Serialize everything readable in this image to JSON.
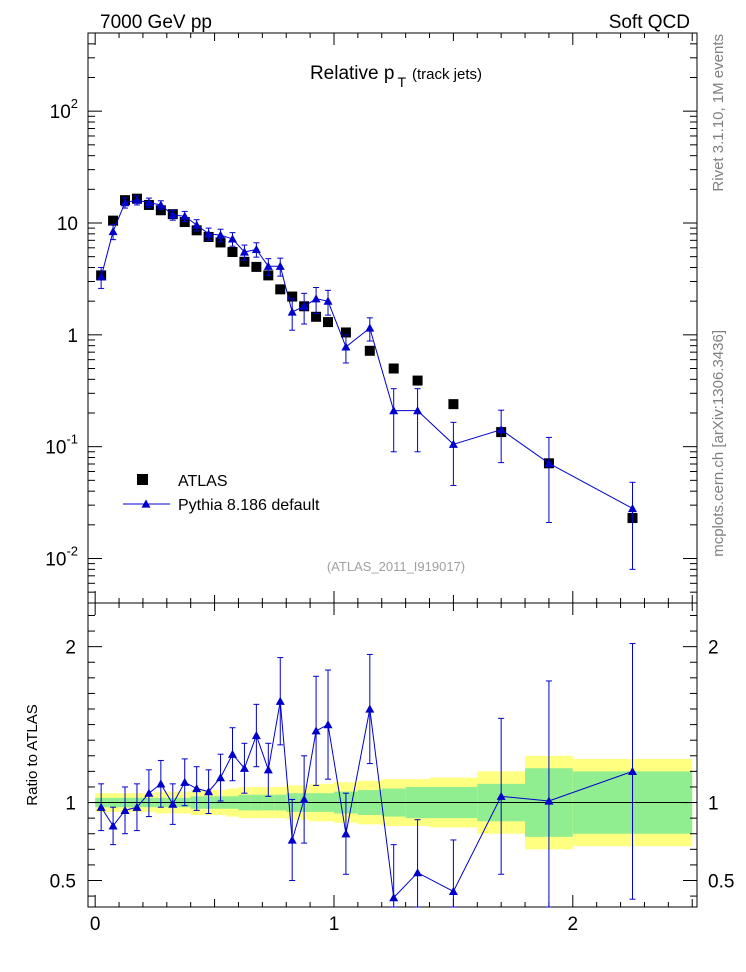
{
  "header": {
    "left": "7000 GeV pp",
    "right": "Soft QCD"
  },
  "side_text": {
    "rivet": "Rivet 3.1.10, 1M events",
    "mcplots": "mcplots.cern.ch [arXiv:1306.3436]"
  },
  "chart_data": [
    {
      "type": "scatter",
      "panel": "main",
      "title": "Relative p_T (track jets)",
      "title_main": "Relative p",
      "title_sub": "T",
      "title_rest": "(track jets)",
      "watermark": "(ATLAS_2011_I919017)",
      "yscale": "log",
      "xlim": [
        -0.03,
        2.52
      ],
      "ylim": [
        0.004,
        500
      ],
      "grid": false,
      "legend_position": "lower-left",
      "x_ticks": [
        "0",
        "1",
        "2"
      ],
      "y_ticks": [
        {
          "v": 0.01,
          "base": "10",
          "exp": "-2"
        },
        {
          "v": 0.1,
          "base": "10",
          "exp": "-1"
        },
        {
          "v": 1,
          "label": "1"
        },
        {
          "v": 10,
          "label": "10"
        },
        {
          "v": 100,
          "base": "10",
          "exp": "2"
        }
      ],
      "series": [
        {
          "name": "ATLAS",
          "color": "#000000",
          "marker": "square",
          "x": [
            0.025,
            0.075,
            0.125,
            0.175,
            0.225,
            0.275,
            0.325,
            0.375,
            0.425,
            0.475,
            0.525,
            0.575,
            0.625,
            0.675,
            0.725,
            0.775,
            0.825,
            0.875,
            0.925,
            0.975,
            1.05,
            1.15,
            1.25,
            1.35,
            1.5,
            1.7,
            1.9,
            2.25
          ],
          "y": [
            3.4,
            10.5,
            16.0,
            16.5,
            14.5,
            13.0,
            12.0,
            10.2,
            8.6,
            7.5,
            6.7,
            5.5,
            4.5,
            4.05,
            3.4,
            2.55,
            2.2,
            1.8,
            1.45,
            1.3,
            1.05,
            0.72,
            0.5,
            0.39,
            0.24,
            0.135,
            0.071,
            0.023
          ]
        },
        {
          "name": "Pythia 8.186 default",
          "color": "#0000cc",
          "marker": "triangle",
          "x": [
            0.025,
            0.075,
            0.125,
            0.175,
            0.225,
            0.275,
            0.325,
            0.375,
            0.425,
            0.475,
            0.525,
            0.575,
            0.625,
            0.675,
            0.725,
            0.775,
            0.825,
            0.875,
            0.925,
            0.975,
            1.05,
            1.15,
            1.25,
            1.35,
            1.5,
            1.7,
            1.9,
            2.25
          ],
          "y": [
            3.3,
            8.4,
            15.2,
            16.0,
            15.2,
            14.5,
            11.8,
            11.5,
            9.6,
            8.0,
            7.8,
            7.2,
            5.5,
            5.8,
            4.1,
            4.1,
            1.6,
            1.8,
            2.1,
            2.0,
            0.78,
            1.15,
            0.21,
            0.21,
            0.105,
            0.142,
            0.071,
            0.028
          ],
          "err": [
            0.7,
            1.3,
            1.6,
            1.5,
            1.5,
            1.3,
            1.2,
            1.2,
            1.1,
            1.0,
            1.0,
            1.0,
            0.85,
            0.85,
            0.7,
            0.75,
            0.5,
            0.55,
            0.55,
            0.5,
            0.22,
            0.27,
            0.12,
            0.12,
            0.06,
            0.07,
            0.05,
            0.02
          ]
        }
      ]
    },
    {
      "type": "scatter",
      "panel": "ratio",
      "ylabel": "Ratio to ATLAS",
      "xlim": [
        -0.03,
        2.52
      ],
      "ylim": [
        0.33,
        2.28
      ],
      "x_ticks": [
        "0",
        "1",
        "2"
      ],
      "y_ticks": [
        "0.5",
        "1",
        "2"
      ],
      "reference_line": 1.0,
      "band_colors": {
        "inner": "#90ee90",
        "outer": "#ffff80"
      },
      "bands": {
        "x_edges": [
          0.0,
          0.05,
          0.1,
          0.15,
          0.2,
          0.25,
          0.3,
          0.35,
          0.4,
          0.45,
          0.5,
          0.55,
          0.6,
          0.65,
          0.7,
          0.75,
          0.8,
          0.85,
          0.9,
          0.95,
          1.0,
          1.1,
          1.2,
          1.3,
          1.4,
          1.6,
          1.8,
          2.0,
          2.5
        ],
        "inner_half": [
          0.03,
          0.03,
          0.03,
          0.03,
          0.03,
          0.03,
          0.03,
          0.03,
          0.04,
          0.04,
          0.04,
          0.04,
          0.05,
          0.05,
          0.05,
          0.05,
          0.06,
          0.06,
          0.06,
          0.06,
          0.07,
          0.08,
          0.09,
          0.1,
          0.1,
          0.12,
          0.22,
          0.2
        ],
        "outer_half": [
          0.06,
          0.06,
          0.06,
          0.06,
          0.06,
          0.07,
          0.07,
          0.07,
          0.08,
          0.08,
          0.08,
          0.09,
          0.1,
          0.1,
          0.1,
          0.1,
          0.11,
          0.11,
          0.12,
          0.12,
          0.13,
          0.14,
          0.15,
          0.15,
          0.16,
          0.2,
          0.3,
          0.28
        ]
      },
      "series": [
        {
          "name": "Pythia 8.186 default",
          "color": "#0000cc",
          "marker": "triangle",
          "x": [
            0.025,
            0.075,
            0.125,
            0.175,
            0.225,
            0.275,
            0.325,
            0.375,
            0.425,
            0.475,
            0.525,
            0.575,
            0.625,
            0.675,
            0.725,
            0.775,
            0.825,
            0.875,
            0.925,
            0.975,
            1.05,
            1.15,
            1.25,
            1.35,
            1.5,
            1.7,
            1.9,
            2.25
          ],
          "y": [
            0.97,
            0.85,
            0.95,
            0.97,
            1.06,
            1.12,
            0.99,
            1.13,
            1.09,
            1.07,
            1.16,
            1.31,
            1.22,
            1.43,
            1.21,
            1.65,
            0.76,
            1.02,
            1.46,
            1.5,
            0.8,
            1.6,
            0.39,
            0.55,
            0.43,
            1.04,
            1.01,
            1.2
          ],
          "err": [
            0.15,
            0.12,
            0.15,
            0.15,
            0.15,
            0.15,
            0.13,
            0.15,
            0.14,
            0.14,
            0.15,
            0.17,
            0.16,
            0.2,
            0.17,
            0.28,
            0.26,
            0.28,
            0.35,
            0.35,
            0.26,
            0.35,
            0.34,
            0.34,
            0.33,
            0.5,
            0.77,
            0.82
          ]
        }
      ]
    }
  ]
}
